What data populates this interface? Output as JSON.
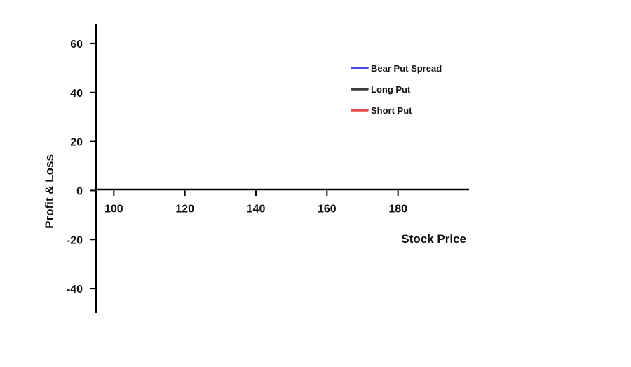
{
  "chart_data": {
    "type": "line",
    "title": "",
    "xlabel": "Stock Price",
    "ylabel": "Profit & Loss",
    "xlim": [
      95,
      200
    ],
    "ylim": [
      -50,
      68
    ],
    "x_ticks": [
      100,
      120,
      140,
      160,
      180
    ],
    "y_ticks": [
      60,
      40,
      20,
      0,
      -20,
      -40
    ],
    "grid": false,
    "legend_position": "top-right",
    "series": [
      {
        "name": "Bear Put Spread",
        "color": "#4a4ae6",
        "x": [],
        "y": []
      },
      {
        "name": "Long Put",
        "color": "#3d3d3d",
        "x": [],
        "y": []
      },
      {
        "name": "Short Put",
        "color": "#e64a4a",
        "x": [],
        "y": []
      }
    ]
  }
}
